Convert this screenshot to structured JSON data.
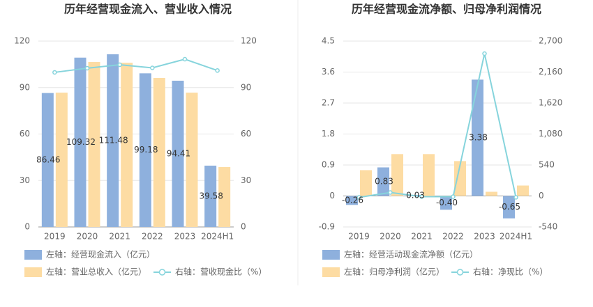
{
  "chart_data": [
    {
      "type": "bar",
      "title": "历年经营现金流入、营业收入情况",
      "categories": [
        "2019",
        "2020",
        "2021",
        "2022",
        "2023",
        "2024H1"
      ],
      "series": [
        {
          "name": "左轴：经营现金流入（亿元）",
          "color": "#8eb0dd",
          "type": "bar",
          "axis": "y",
          "values": [
            86.46,
            109.32,
            111.48,
            99.18,
            94.41,
            39.58
          ],
          "value_labels": [
            "86.46",
            "109.32",
            "111.48",
            "99.18",
            "94.41",
            "39.58"
          ]
        },
        {
          "name": "左轴：营业总收入（亿元）",
          "color": "#fddca3",
          "type": "bar",
          "axis": "y",
          "values": [
            86.7,
            106.5,
            106,
            96.2,
            86.7,
            38.7
          ]
        },
        {
          "name": "右轴：营收现金比（%）",
          "color": "#86d4dc",
          "type": "line",
          "axis": "y2",
          "values": [
            99.8,
            102.5,
            104.7,
            102.7,
            108.3,
            101
          ]
        }
      ],
      "ylim": [
        0,
        120
      ],
      "yticks": [
        0,
        30,
        60,
        90,
        120
      ],
      "y2lim": [
        0,
        120
      ],
      "y2ticks": [
        0,
        30,
        60,
        90,
        120
      ],
      "grid": true
    },
    {
      "type": "bar",
      "title": "历年经营现金流净额、归母净利润情况",
      "categories": [
        "2019",
        "2020",
        "2021",
        "2022",
        "2023",
        "2024H1"
      ],
      "series": [
        {
          "name": "左轴：经营活动现金流净额（亿元）",
          "color": "#8eb0dd",
          "type": "bar",
          "axis": "y",
          "values": [
            -0.26,
            0.83,
            0.03,
            -0.4,
            3.38,
            -0.65
          ],
          "value_labels": [
            "-0.26",
            "0.83",
            "0.03",
            "-0.40",
            "3.38",
            "-0.65"
          ]
        },
        {
          "name": "左轴：归母净利润（亿元）",
          "color": "#fddca3",
          "type": "bar",
          "axis": "y2",
          "values": [
            450,
            730,
            730,
            608,
            73,
            182
          ]
        },
        {
          "name": "右轴：净现比（%）",
          "color": "#86d4dc",
          "type": "line",
          "axis": "y2",
          "values": [
            -24,
            61,
            -12,
            -12,
            2481,
            -24
          ]
        }
      ],
      "ylim": [
        -0.9,
        4.5
      ],
      "yticks": [
        -0.9,
        0,
        0.9,
        1.8,
        2.7,
        3.6,
        4.5
      ],
      "y2lim": [
        -540,
        2700
      ],
      "y2ticks": [
        -540,
        0,
        540,
        {
          "value": 1080,
          "label": "1,080"
        },
        {
          "value": 1620,
          "label": "1,620"
        },
        {
          "value": 2160,
          "label": "2,160"
        },
        {
          "value": 2700,
          "label": "2,700"
        }
      ],
      "grid": true
    }
  ]
}
